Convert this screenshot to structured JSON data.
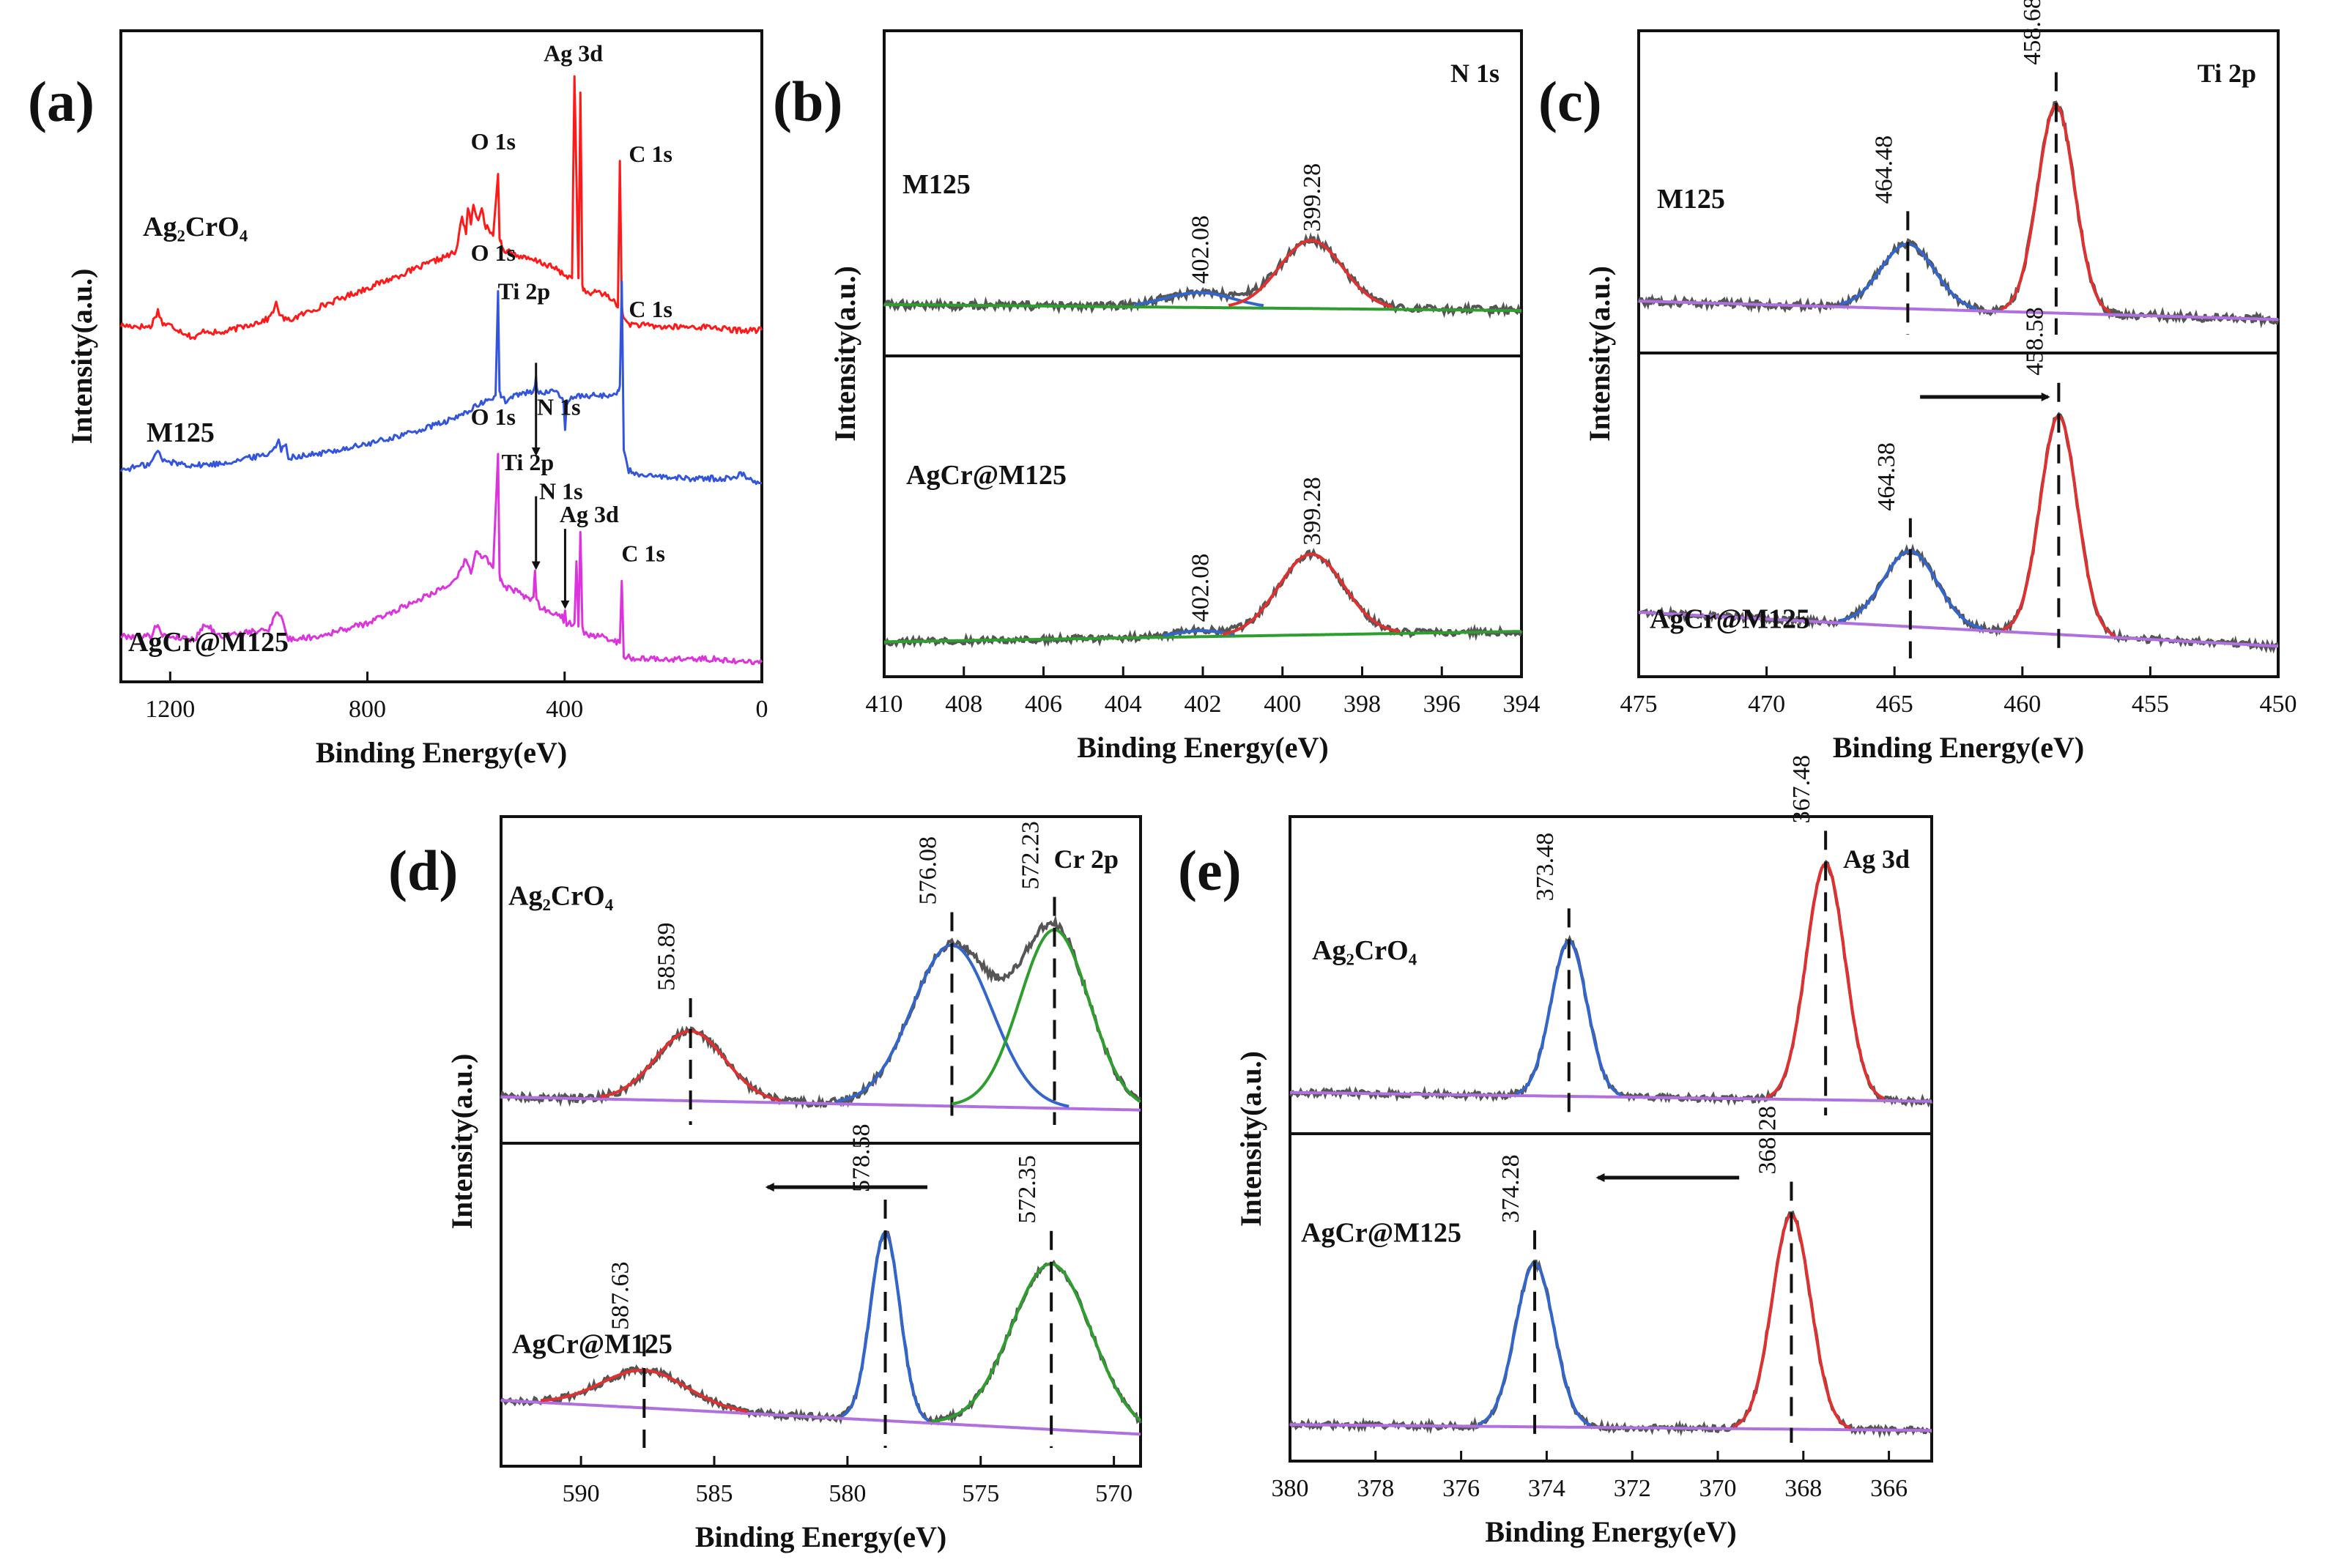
{
  "chart_data": [
    {
      "id": "a",
      "panel_label": "(a)",
      "type": "line",
      "title": "",
      "xlabel": "Binding Energy(eV)",
      "ylabel": "Intensity(a.u.)",
      "xlim": [
        1300,
        0
      ],
      "xticks": [
        1200,
        800,
        400,
        0
      ],
      "series": [
        {
          "name": "Ag2CrO4",
          "label": "Ag₂CrO₄",
          "color": "#ff1a1a",
          "offset": 10.2,
          "x": [
            1300,
            1240,
            1225,
            1215,
            1200,
            1150,
            1130,
            1100,
            1000,
            985,
            975,
            960,
            900,
            800,
            700,
            620,
            608,
            600,
            596,
            590,
            585,
            575,
            568,
            560,
            545,
            535,
            532,
            529,
            525,
            510,
            480,
            450,
            420,
            400,
            385,
            380,
            372,
            368,
            364,
            360,
            350,
            330,
            300,
            292,
            288,
            284,
            280,
            270,
            240,
            200,
            150,
            100,
            60,
            20,
            0
          ],
          "y": [
            0.75,
            0.7,
            1.2,
            0.8,
            0.75,
            0.35,
            0.6,
            0.5,
            0.95,
            1.4,
            1.0,
            0.9,
            1.3,
            1.9,
            2.5,
            3.0,
            4.1,
            3.6,
            4.4,
            3.8,
            4.5,
            3.9,
            4.3,
            3.8,
            3.5,
            5.4,
            3.5,
            3.3,
            3.1,
            3.0,
            2.8,
            2.7,
            2.5,
            2.3,
            2.2,
            8.4,
            2.2,
            7.9,
            2.0,
            1.8,
            1.7,
            1.8,
            1.5,
            1.3,
            5.8,
            1.4,
            0.9,
            0.8,
            0.75,
            0.7,
            0.7,
            0.7,
            0.6,
            0.6,
            0.6
          ]
        },
        {
          "name": "M125",
          "label": "M125",
          "color": "#3355dd",
          "offset": 5.9,
          "x": [
            1300,
            1240,
            1225,
            1215,
            1200,
            1150,
            1100,
            1000,
            980,
            975,
            965,
            960,
            900,
            800,
            700,
            620,
            600,
            575,
            560,
            540,
            535,
            532,
            529,
            520,
            500,
            470,
            462,
            458,
            455,
            420,
            410,
            402,
            399,
            396,
            380,
            350,
            330,
            300,
            292,
            288,
            284,
            280,
            270,
            240,
            200,
            160,
            100,
            60,
            40,
            20,
            0
          ],
          "y": [
            0.6,
            0.8,
            1.2,
            0.9,
            0.85,
            0.75,
            0.8,
            1.1,
            1.5,
            1.2,
            1.4,
            1.0,
            1.1,
            1.4,
            1.8,
            2.2,
            2.4,
            2.6,
            2.7,
            2.9,
            6.1,
            3.0,
            2.9,
            2.7,
            2.9,
            3.0,
            3.1,
            3.4,
            3.0,
            3.0,
            2.9,
            2.7,
            1.85,
            2.6,
            2.9,
            2.9,
            2.9,
            2.9,
            3.0,
            3.2,
            6.4,
            1.2,
            0.6,
            0.4,
            0.4,
            0.35,
            0.35,
            0.35,
            0.5,
            0.3,
            0.2
          ]
        },
        {
          "name": "AgCr@M125",
          "label": "AgCr@M125",
          "color": "#dd33dd",
          "offset": 0.5,
          "x": [
            1300,
            1240,
            1225,
            1215,
            1200,
            1150,
            1130,
            1100,
            1000,
            985,
            975,
            960,
            900,
            800,
            700,
            620,
            600,
            590,
            580,
            560,
            545,
            535,
            532,
            529,
            520,
            500,
            470,
            463,
            460,
            457,
            450,
            420,
            405,
            402,
            399,
            396,
            380,
            376,
            372,
            368,
            364,
            360,
            350,
            330,
            300,
            292,
            288,
            284,
            280,
            270,
            240,
            200,
            150,
            100,
            60,
            20,
            0
          ],
          "y": [
            0.9,
            0.9,
            1.3,
            0.9,
            0.9,
            0.8,
            1.3,
            0.9,
            1.1,
            1.7,
            1.5,
            0.8,
            0.9,
            1.3,
            2.0,
            2.6,
            3.3,
            2.8,
            3.5,
            3.3,
            3.0,
            6.5,
            2.8,
            2.6,
            2.4,
            2.3,
            2.0,
            2.2,
            2.9,
            2.0,
            1.8,
            1.6,
            1.5,
            1.4,
            1.7,
            1.3,
            1.3,
            3.2,
            1.2,
            4.1,
            1.2,
            1.0,
            0.9,
            0.9,
            0.8,
            0.7,
            0.7,
            2.6,
            0.3,
            0.25,
            0.2,
            0.2,
            0.2,
            0.2,
            0.15,
            0.1,
            0.1
          ]
        }
      ],
      "annotations": [
        {
          "text": "O 1s",
          "x": 530,
          "y": 15.9
        },
        {
          "text": "Ag 3d",
          "x": 375,
          "y": 18.8
        },
        {
          "text": "C 1s",
          "x": 285,
          "y": 16.2
        },
        {
          "text": "O 1s",
          "x": 530,
          "y": 12.6
        },
        {
          "text": "Ti 2p",
          "x": 460,
          "y": 11.3
        },
        {
          "text": "C 1s",
          "x": 285,
          "y": 11.2
        },
        {
          "text": "N 1s",
          "x": 400,
          "y": 8.2
        },
        {
          "text": "O 1s",
          "x": 530,
          "y": 7.9
        },
        {
          "text": "Ti 2p",
          "x": 460,
          "y": 6.5
        },
        {
          "text": "N 1s",
          "x": 400,
          "y": 5.5
        },
        {
          "text": "Ag 3d",
          "x": 368,
          "y": 4.9
        },
        {
          "text": "C 1s",
          "x": 285,
          "y": 3.7
        }
      ],
      "arrows": [
        {
          "x": 458,
          "y_from": 9.8,
          "y_to": 7.0
        },
        {
          "x": 458,
          "y_from": 5.7,
          "y_to": 3.5
        },
        {
          "x": 399,
          "y_from": 4.7,
          "y_to": 2.3
        }
      ]
    },
    {
      "id": "b",
      "panel_label": "(b)",
      "type": "line",
      "title": "N 1s",
      "xlabel": "Binding Energy(eV)",
      "ylabel": "Intensity(a.u.)",
      "xlim": [
        410,
        394
      ],
      "xticks": [
        410,
        408,
        406,
        404,
        402,
        400,
        398,
        396,
        394
      ],
      "samples": [
        {
          "name": "M125",
          "label": "M125",
          "y_pct_range": [
            0,
            30.5
          ],
          "baseline": [
            2.1,
            1.45
          ],
          "components": [
            {
              "center": 402.08,
              "height": 1.6,
              "sigma": 0.85,
              "color": "#3366cc"
            },
            {
              "center": 399.28,
              "height": 7.3,
              "sigma": 0.8,
              "color": "#e03030"
            }
          ],
          "peak_labels": [
            "402.08",
            "399.28"
          ],
          "background_color": "#2e9e2e"
        },
        {
          "name": "AgCr@M125",
          "label": "AgCr@M125",
          "y_pct_range": [
            0,
            38
          ],
          "baseline": [
            0.9,
            2.3
          ],
          "components": [
            {
              "center": 402.08,
              "height": 0.8,
              "sigma": 0.6,
              "color": "#3366cc"
            },
            {
              "center": 399.28,
              "height": 10.8,
              "sigma": 0.82,
              "color": "#e03030"
            }
          ],
          "peak_labels": [
            "402.08",
            "399.28"
          ],
          "background_color": "#2e9e2e"
        }
      ]
    },
    {
      "id": "c",
      "panel_label": "(c)",
      "type": "line",
      "title": "Ti 2p",
      "xlabel": "Binding Energy(eV)",
      "ylabel": "Intensity(a.u.)",
      "xlim": [
        475,
        450
      ],
      "xticks": [
        475,
        470,
        465,
        460,
        455,
        450
      ],
      "samples": [
        {
          "name": "M125",
          "label": "M125",
          "y_pct_range": [
            0,
            30.5
          ],
          "baseline": [
            2.2,
            0.2
          ],
          "components": [
            {
              "center": 464.48,
              "height": 7.0,
              "sigma": 1.05,
              "color": "#3366cc"
            },
            {
              "center": 458.68,
              "height": 22.5,
              "sigma": 0.72,
              "color": "#e03030"
            }
          ],
          "peak_labels": [
            "464.48",
            "458.68"
          ],
          "background_color": "#b070e0"
        },
        {
          "name": "AgCr@M125",
          "label": "AgCr@M125",
          "y_pct_range": [
            0,
            38
          ],
          "baseline": [
            4.8,
            0.3
          ],
          "components": [
            {
              "center": 464.38,
              "height": 10.0,
              "sigma": 1.05,
              "color": "#3366cc"
            },
            {
              "center": 458.58,
              "height": 29.0,
              "sigma": 0.72,
              "color": "#e03030"
            }
          ],
          "peak_labels": [
            "464.38",
            "458.58"
          ],
          "background_color": "#b070e0"
        }
      ],
      "shift_arrow": {
        "x_from": 464,
        "x_to": 459,
        "direction": "right"
      }
    },
    {
      "id": "d",
      "panel_label": "(d)",
      "type": "line",
      "title": "Cr 2p",
      "xlabel": "Binding Energy(eV)",
      "ylabel": "Intensity(a.u.)",
      "xlim": [
        593,
        569
      ],
      "xticks": [
        590,
        585,
        580,
        575,
        570
      ],
      "samples": [
        {
          "name": "Ag2CrO4",
          "label": "Ag₂CrO₄",
          "y_pct_range": [
            0,
            33
          ],
          "baseline": [
            1.8,
            0.3
          ],
          "components": [
            {
              "center": 585.89,
              "height": 8.0,
              "sigma": 1.3,
              "color": "#e03030"
            },
            {
              "center": 576.08,
              "height": 18.5,
              "sigma": 1.5,
              "color": "#3366cc"
            },
            {
              "center": 572.23,
              "height": 20.5,
              "sigma": 1.3,
              "color": "#2e9e2e"
            }
          ],
          "peak_labels": [
            "585.89",
            "576.08",
            "572.23"
          ],
          "background_color": "#b070e0"
        },
        {
          "name": "AgCr@M125",
          "label": "AgCr@M125",
          "y_pct_range": [
            0,
            38
          ],
          "baseline": [
            5.0,
            0.5
          ],
          "components": [
            {
              "center": 587.63,
              "height": 5.0,
              "sigma": 1.6,
              "color": "#e03030"
            },
            {
              "center": 578.58,
              "height": 25.0,
              "sigma": 0.55,
              "color": "#3366cc"
            },
            {
              "center": 572.35,
              "height": 22.0,
              "sigma": 1.5,
              "color": "#2e9e2e"
            }
          ],
          "peak_labels": [
            "587.63",
            "578.58",
            "572.35"
          ],
          "background_color": "#b070e0"
        }
      ],
      "shift_arrow": {
        "x_from": 577,
        "x_to": 583,
        "direction": "left"
      }
    },
    {
      "id": "e",
      "panel_label": "(e)",
      "type": "line",
      "title": "Ag 3d",
      "xlabel": "Binding Energy(eV)",
      "ylabel": "Intensity(a.u.)",
      "xlim": [
        380,
        365
      ],
      "xticks": [
        380,
        378,
        376,
        374,
        372,
        370,
        368,
        366
      ],
      "samples": [
        {
          "name": "Ag2CrO4",
          "label": "Ag₂CrO₄",
          "y_pct_range": [
            0,
            38
          ],
          "baseline": [
            1.8,
            0.6
          ],
          "components": [
            {
              "center": 373.48,
              "height": 21.0,
              "sigma": 0.42,
              "color": "#3366cc"
            },
            {
              "center": 367.48,
              "height": 32.0,
              "sigma": 0.45,
              "color": "#e03030"
            }
          ],
          "peak_labels": [
            "373.48",
            "367.48"
          ],
          "background_color": "#b070e0"
        },
        {
          "name": "AgCr@M125",
          "label": "AgCr@M125",
          "y_pct_range": [
            0,
            40
          ],
          "baseline": [
            1.2,
            0.4
          ],
          "components": [
            {
              "center": 374.28,
              "height": 22.5,
              "sigma": 0.45,
              "color": "#3366cc"
            },
            {
              "center": 368.28,
              "height": 29.5,
              "sigma": 0.45,
              "color": "#e03030"
            }
          ],
          "peak_labels": [
            "374.28",
            "368.28"
          ],
          "background_color": "#b070e0"
        }
      ],
      "shift_arrow": {
        "x_from": 369.5,
        "x_to": 372.8,
        "direction": "left"
      }
    }
  ]
}
